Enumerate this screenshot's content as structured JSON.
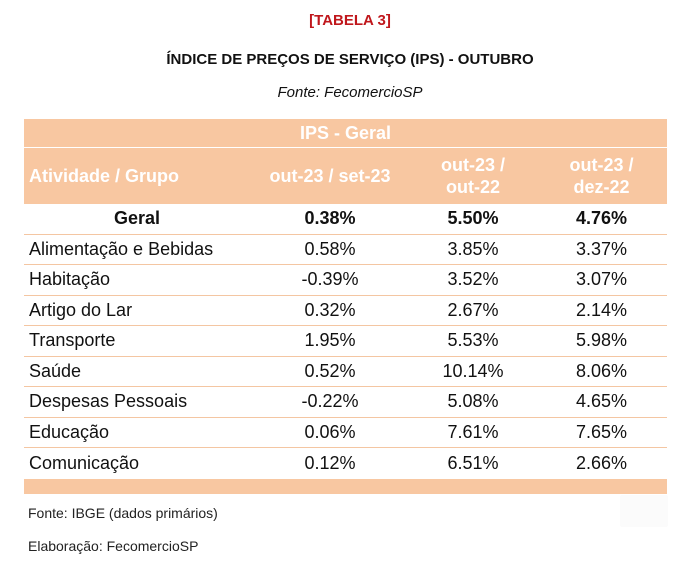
{
  "header": {
    "table_tag": "[TABELA 3]",
    "title": "ÍNDICE DE PREÇOS DE SERVIÇO (IPS) - OUTUBRO",
    "source": "Fonte: FecomercioSP"
  },
  "table": {
    "band_title": "IPS - Geral",
    "columns": {
      "activity": "Atividade / Grupo",
      "col1": "out-23 /  set-23",
      "col2_line1": "out-23 /",
      "col2_line2": "out-22",
      "col3_line1": "out-23 /",
      "col3_line2": "dez-22"
    },
    "rows": [
      {
        "group": "Geral",
        "v1": "0.38%",
        "v2": "5.50%",
        "v3": "4.76%"
      },
      {
        "group": "Alimentação e Bebidas",
        "v1": "0.58%",
        "v2": "3.85%",
        "v3": "3.37%"
      },
      {
        "group": "Habitação",
        "v1": "-0.39%",
        "v2": "3.52%",
        "v3": "3.07%"
      },
      {
        "group": "Artigo do Lar",
        "v1": "0.32%",
        "v2": "2.67%",
        "v3": "2.14%"
      },
      {
        "group": "Transporte",
        "v1": "1.95%",
        "v2": "5.53%",
        "v3": "5.98%"
      },
      {
        "group": "Saúde",
        "v1": "0.52%",
        "v2": "10.14%",
        "v3": "8.06%"
      },
      {
        "group": "Despesas Pessoais",
        "v1": "-0.22%",
        "v2": "5.08%",
        "v3": "4.65%"
      },
      {
        "group": "Educação",
        "v1": "0.06%",
        "v2": "7.61%",
        "v3": "7.65%"
      },
      {
        "group": "Comunicação",
        "v1": "0.12%",
        "v2": "6.51%",
        "v3": "2.66%"
      }
    ]
  },
  "footer": {
    "source": "Fonte: IBGE (dados primários)",
    "elaboration": "Elaboração: FecomercioSP"
  },
  "colors": {
    "accent_red": "#c0171c",
    "table_peach": "#f8c7a1"
  }
}
